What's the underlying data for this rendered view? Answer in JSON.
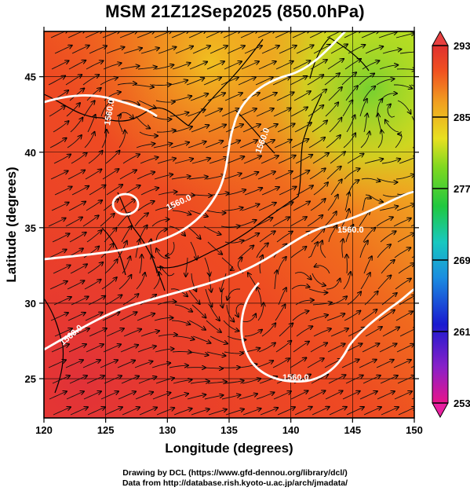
{
  "title": "MSM 21Z12Sep2025 (850.0hPa)",
  "x_axis": {
    "label": "Longitude (degrees)",
    "range": [
      120,
      150
    ],
    "ticks": [
      "120",
      "125",
      "130",
      "135",
      "140",
      "145",
      "150"
    ]
  },
  "y_axis": {
    "label": "Latitude  (degrees)",
    "range": [
      22.4,
      48
    ],
    "ticks": [
      "25",
      "30",
      "35",
      "40",
      "45"
    ]
  },
  "colorbar": {
    "range": [
      253,
      293
    ],
    "tick_labels": [
      "293",
      "285",
      "277",
      "269",
      "261",
      "253"
    ],
    "colors": [
      "#e8158a",
      "#8a20c8",
      "#1a1ad0",
      "#1aa0e0",
      "#18c8a0",
      "#20c830",
      "#a8e020",
      "#f0e020",
      "#f0a020",
      "#f05020",
      "#e03030"
    ]
  },
  "contour_labels": [
    "1560.0",
    "1560.0",
    "1560.0",
    "1560.0",
    "1560.0",
    "1560.0"
  ],
  "credits": {
    "line1": "Drawing by DCL (https://www.gfd-dennou.org/library/dcl/)",
    "line2": "Data from http://database.rish.kyoto-u.ac.jp/arch/jmadata/"
  }
}
